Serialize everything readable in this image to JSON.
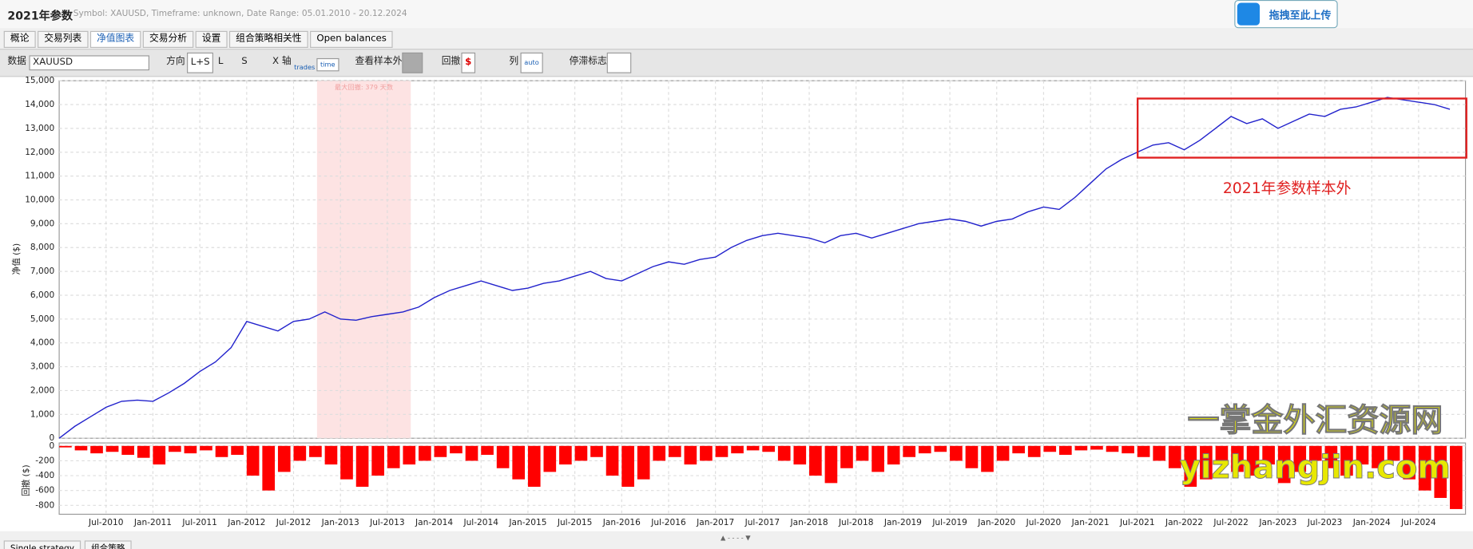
{
  "header": {
    "title": "2021年参数",
    "info": "Symbol: XAUUSD, Timeframe: unknown, Date Range: 05.01.2010 - 20.12.2024",
    "upload": "拖拽至此上传"
  },
  "tabs": [
    "概论",
    "交易列表",
    "净值图表",
    "交易分析",
    "设置",
    "组合策略相关性",
    "Open balances"
  ],
  "toolbar": {
    "data_label": "数据",
    "symbol": "XAUUSD",
    "direction_label": "方向",
    "directions": [
      "L+S",
      "L",
      "S"
    ],
    "xaxis_label": "X 轴",
    "xaxis_options": [
      "trades",
      "time"
    ],
    "oos_label": "查看样本外",
    "drawdown_label": "回撤",
    "drawdown_unit": "$",
    "columns_label": "列",
    "columns_option": "auto",
    "stagnation_label": "停滞标志"
  },
  "bottom_tabs": [
    "Single strategy",
    "组合策略"
  ],
  "annotations": {
    "oos": "2021年参数样本外",
    "watermark_cn": "一掌金外汇资源网",
    "watermark_url": "yizhangjin.com"
  },
  "chart_data": [
    {
      "type": "line",
      "y_label": "净值 ($)",
      "color": "#2222cc",
      "grid": true,
      "shade": {
        "x": [
          "2012-10",
          "2013-10"
        ],
        "label": "最大回撤: 379 天数"
      },
      "x": [
        "2010-01",
        "2010-03",
        "2010-05",
        "2010-07",
        "2010-09",
        "2010-11",
        "2011-01",
        "2011-03",
        "2011-05",
        "2011-07",
        "2011-09",
        "2011-11",
        "2012-01",
        "2012-03",
        "2012-05",
        "2012-07",
        "2012-09",
        "2012-11",
        "2013-01",
        "2013-03",
        "2013-05",
        "2013-07",
        "2013-09",
        "2013-11",
        "2014-01",
        "2014-03",
        "2014-05",
        "2014-07",
        "2014-09",
        "2014-11",
        "2015-01",
        "2015-03",
        "2015-05",
        "2015-07",
        "2015-09",
        "2015-11",
        "2016-01",
        "2016-03",
        "2016-05",
        "2016-07",
        "2016-09",
        "2016-11",
        "2017-01",
        "2017-03",
        "2017-05",
        "2017-07",
        "2017-09",
        "2017-11",
        "2018-01",
        "2018-03",
        "2018-05",
        "2018-07",
        "2018-09",
        "2018-11",
        "2019-01",
        "2019-03",
        "2019-05",
        "2019-07",
        "2019-09",
        "2019-11",
        "2020-01",
        "2020-03",
        "2020-05",
        "2020-07",
        "2020-09",
        "2020-11",
        "2021-01",
        "2021-03",
        "2021-05",
        "2021-07",
        "2021-09",
        "2021-11",
        "2022-01",
        "2022-03",
        "2022-05",
        "2022-07",
        "2022-09",
        "2022-11",
        "2023-01",
        "2023-03",
        "2023-05",
        "2023-07",
        "2023-09",
        "2023-11",
        "2024-01",
        "2024-03",
        "2024-05",
        "2024-07",
        "2024-09",
        "2024-11"
      ],
      "values": [
        0,
        500,
        900,
        1300,
        1550,
        1600,
        1550,
        1900,
        2300,
        2800,
        3200,
        3800,
        4900,
        4700,
        4500,
        4900,
        5000,
        5300,
        5000,
        4950,
        5100,
        5200,
        5300,
        5500,
        5900,
        6200,
        6400,
        6600,
        6400,
        6200,
        6300,
        6500,
        6600,
        6800,
        7000,
        6700,
        6600,
        6900,
        7200,
        7400,
        7300,
        7500,
        7600,
        8000,
        8300,
        8500,
        8600,
        8500,
        8400,
        8200,
        8500,
        8600,
        8400,
        8600,
        8800,
        9000,
        9100,
        9200,
        9100,
        8900,
        9100,
        9200,
        9500,
        9700,
        9600,
        10100,
        10700,
        11300,
        11700,
        12000,
        12300,
        12400,
        12100,
        12500,
        13000,
        13500,
        13200,
        13400,
        13000,
        13300,
        13600,
        13500,
        13800,
        13900,
        14100,
        14300,
        14200,
        14100,
        14000,
        13800
      ],
      "xlim": [
        "2010-01",
        "2025-01"
      ],
      "ylim": [
        0,
        15000
      ],
      "yticks": [
        0,
        {
          "value": 1000,
          "label": "1,000"
        },
        {
          "value": 2000,
          "label": "2,000"
        },
        {
          "value": 3000,
          "label": "3,000"
        },
        {
          "value": 4000,
          "label": "4,000"
        },
        {
          "value": 5000,
          "label": "5,000"
        },
        {
          "value": 6000,
          "label": "6,000"
        },
        {
          "value": 7000,
          "label": "7,000"
        },
        {
          "value": 8000,
          "label": "8,000"
        },
        {
          "value": 9000,
          "label": "9,000"
        },
        {
          "value": 10000,
          "label": "10,000"
        },
        {
          "value": 11000,
          "label": "11,000"
        },
        {
          "value": 12000,
          "label": "12,000"
        },
        {
          "value": 13000,
          "label": "13,000"
        },
        {
          "value": 14000,
          "label": "14,000"
        },
        {
          "value": 15000,
          "label": "15,000"
        }
      ],
      "xticks": [
        {
          "value": "2010-07",
          "label": "Jul-2010"
        },
        {
          "value": "2011-01",
          "label": "Jan-2011"
        },
        {
          "value": "2011-07",
          "label": "Jul-2011"
        },
        {
          "value": "2012-01",
          "label": "Jan-2012"
        },
        {
          "value": "2012-07",
          "label": "Jul-2012"
        },
        {
          "value": "2013-01",
          "label": "Jan-2013"
        },
        {
          "value": "2013-07",
          "label": "Jul-2013"
        },
        {
          "value": "2014-01",
          "label": "Jan-2014"
        },
        {
          "value": "2014-07",
          "label": "Jul-2014"
        },
        {
          "value": "2015-01",
          "label": "Jan-2015"
        },
        {
          "value": "2015-07",
          "label": "Jul-2015"
        },
        {
          "value": "2016-01",
          "label": "Jan-2016"
        },
        {
          "value": "2016-07",
          "label": "Jul-2016"
        },
        {
          "value": "2017-01",
          "label": "Jan-2017"
        },
        {
          "value": "2017-07",
          "label": "Jul-2017"
        },
        {
          "value": "2018-01",
          "label": "Jan-2018"
        },
        {
          "value": "2018-07",
          "label": "Jul-2018"
        },
        {
          "value": "2019-01",
          "label": "Jan-2019"
        },
        {
          "value": "2019-07",
          "label": "Jul-2019"
        },
        {
          "value": "2020-01",
          "label": "Jan-2020"
        },
        {
          "value": "2020-07",
          "label": "Jul-2020"
        },
        {
          "value": "2021-01",
          "label": "Jan-2021"
        },
        {
          "value": "2021-07",
          "label": "Jul-2021"
        },
        {
          "value": "2022-01",
          "label": "Jan-2022"
        },
        {
          "value": "2022-07",
          "label": "Jul-2022"
        },
        {
          "value": "2023-01",
          "label": "Jan-2023"
        },
        {
          "value": "2023-07",
          "label": "Jul-2023"
        },
        {
          "value": "2024-01",
          "label": "Jan-2024"
        },
        {
          "value": "2024-07",
          "label": "Jul-2024"
        }
      ]
    },
    {
      "type": "bar",
      "y_label": "回撤 ($)",
      "color": "#ff0000",
      "grid": true,
      "x": [
        "2010-01",
        "2010-03",
        "2010-05",
        "2010-07",
        "2010-09",
        "2010-11",
        "2011-01",
        "2011-03",
        "2011-05",
        "2011-07",
        "2011-09",
        "2011-11",
        "2012-01",
        "2012-03",
        "2012-05",
        "2012-07",
        "2012-09",
        "2012-11",
        "2013-01",
        "2013-03",
        "2013-05",
        "2013-07",
        "2013-09",
        "2013-11",
        "2014-01",
        "2014-03",
        "2014-05",
        "2014-07",
        "2014-09",
        "2014-11",
        "2015-01",
        "2015-03",
        "2015-05",
        "2015-07",
        "2015-09",
        "2015-11",
        "2016-01",
        "2016-03",
        "2016-05",
        "2016-07",
        "2016-09",
        "2016-11",
        "2017-01",
        "2017-03",
        "2017-05",
        "2017-07",
        "2017-09",
        "2017-11",
        "2018-01",
        "2018-03",
        "2018-05",
        "2018-07",
        "2018-09",
        "2018-11",
        "2019-01",
        "2019-03",
        "2019-05",
        "2019-07",
        "2019-09",
        "2019-11",
        "2020-01",
        "2020-03",
        "2020-05",
        "2020-07",
        "2020-09",
        "2020-11",
        "2021-01",
        "2021-03",
        "2021-05",
        "2021-07",
        "2021-09",
        "2021-11",
        "2022-01",
        "2022-03",
        "2022-05",
        "2022-07",
        "2022-09",
        "2022-11",
        "2023-01",
        "2023-03",
        "2023-05",
        "2023-07",
        "2023-09",
        "2023-11",
        "2024-01",
        "2024-03",
        "2024-05",
        "2024-07",
        "2024-09",
        "2024-11"
      ],
      "values": [
        -20,
        -60,
        -100,
        -80,
        -120,
        -160,
        -250,
        -80,
        -100,
        -60,
        -150,
        -120,
        -400,
        -600,
        -350,
        -200,
        -150,
        -250,
        -450,
        -550,
        -400,
        -300,
        -250,
        -200,
        -150,
        -100,
        -200,
        -120,
        -300,
        -450,
        -550,
        -350,
        -250,
        -200,
        -150,
        -400,
        -550,
        -450,
        -200,
        -150,
        -250,
        -200,
        -150,
        -100,
        -60,
        -80,
        -200,
        -250,
        -400,
        -500,
        -300,
        -200,
        -350,
        -250,
        -150,
        -100,
        -80,
        -200,
        -300,
        -350,
        -200,
        -100,
        -150,
        -80,
        -120,
        -60,
        -50,
        -80,
        -100,
        -150,
        -200,
        -300,
        -550,
        -450,
        -200,
        -350,
        -400,
        -250,
        -500,
        -350,
        -200,
        -300,
        -400,
        -250,
        -300,
        -200,
        -450,
        -600,
        -700,
        -850
      ],
      "xlim": [
        "2010-01",
        "2025-01"
      ],
      "ylim": [
        -920,
        40
      ],
      "yticks": [
        0,
        -200,
        -400,
        -600,
        -800
      ],
      "xticks": [
        {
          "value": "2010-07",
          "label": "Jul-2010"
        },
        {
          "value": "2011-01",
          "label": "Jan-2011"
        },
        {
          "value": "2011-07",
          "label": "Jul-2011"
        },
        {
          "value": "2012-01",
          "label": "Jan-2012"
        },
        {
          "value": "2012-07",
          "label": "Jul-2012"
        },
        {
          "value": "2013-01",
          "label": "Jan-2013"
        },
        {
          "value": "2013-07",
          "label": "Jul-2013"
        },
        {
          "value": "2014-01",
          "label": "Jan-2014"
        },
        {
          "value": "2014-07",
          "label": "Jul-2014"
        },
        {
          "value": "2015-01",
          "label": "Jan-2015"
        },
        {
          "value": "2015-07",
          "label": "Jul-2015"
        },
        {
          "value": "2016-01",
          "label": "Jan-2016"
        },
        {
          "value": "2016-07",
          "label": "Jul-2016"
        },
        {
          "value": "2017-01",
          "label": "Jan-2017"
        },
        {
          "value": "2017-07",
          "label": "Jul-2017"
        },
        {
          "value": "2018-01",
          "label": "Jan-2018"
        },
        {
          "value": "2018-07",
          "label": "Jul-2018"
        },
        {
          "value": "2019-01",
          "label": "Jan-2019"
        },
        {
          "value": "2019-07",
          "label": "Jul-2019"
        },
        {
          "value": "2020-01",
          "label": "Jan-2020"
        },
        {
          "value": "2020-07",
          "label": "Jul-2020"
        },
        {
          "value": "2021-01",
          "label": "Jan-2021"
        },
        {
          "value": "2021-07",
          "label": "Jul-2021"
        },
        {
          "value": "2022-01",
          "label": "Jan-2022"
        },
        {
          "value": "2022-07",
          "label": "Jul-2022"
        },
        {
          "value": "2023-01",
          "label": "Jan-2023"
        },
        {
          "value": "2023-07",
          "label": "Jul-2023"
        },
        {
          "value": "2024-01",
          "label": "Jan-2024"
        },
        {
          "value": "2024-07",
          "label": "Jul-2024"
        }
      ]
    }
  ]
}
